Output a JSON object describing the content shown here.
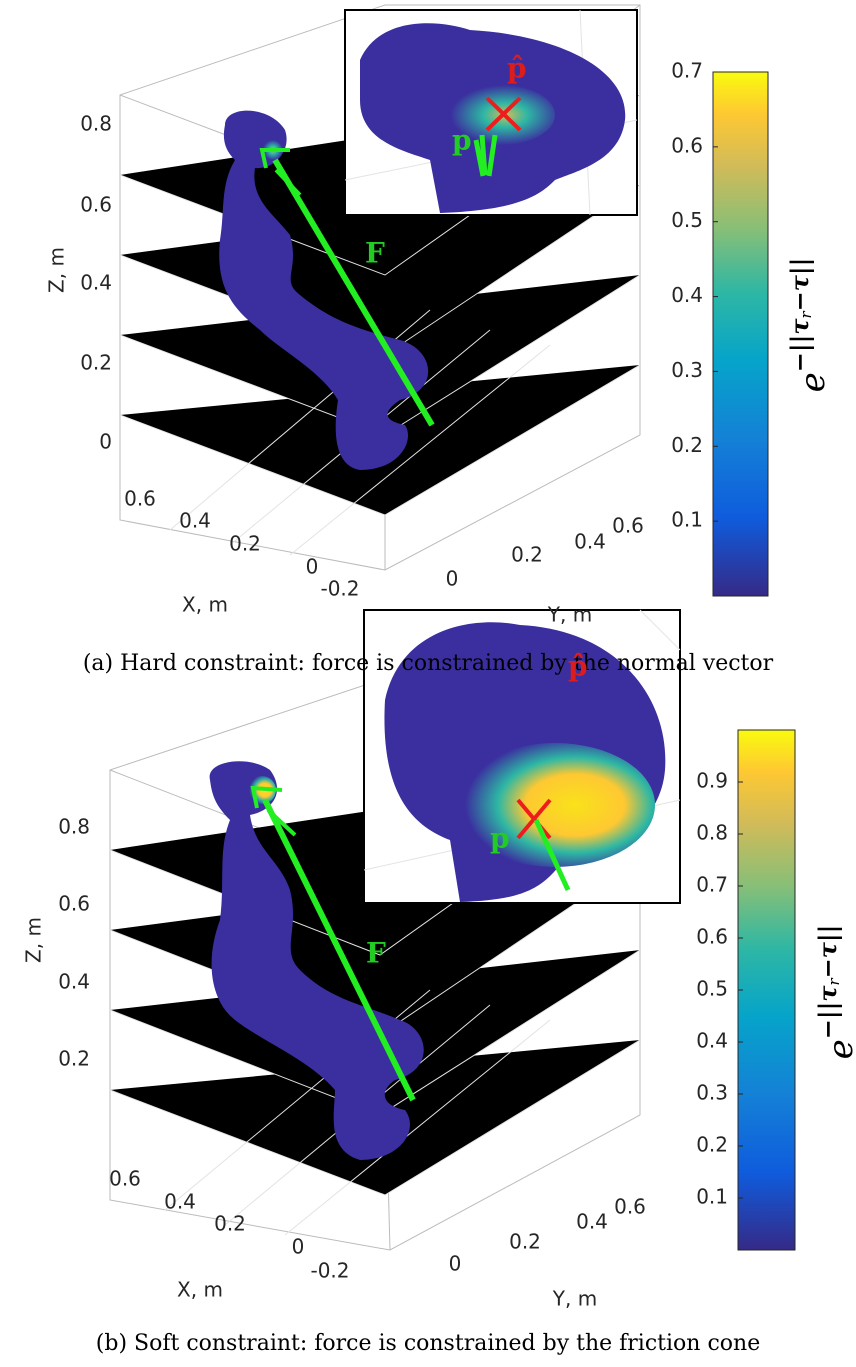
{
  "panels": [
    {
      "z_label": "Z, m",
      "z_ticks": [
        0,
        0.2,
        0.4,
        0.6,
        0.8
      ],
      "x_label": "X, m",
      "x_ticks": [
        0.6,
        0.4,
        0.2,
        0,
        -0.2
      ],
      "y_label": "Y, m",
      "y_ticks": [
        0,
        0.2,
        0.4,
        0.6
      ],
      "colorbar": {
        "lim": [
          0,
          0.7
        ],
        "ticks": [
          0.1,
          0.2,
          0.3,
          0.4,
          0.5,
          0.6,
          0.7
        ],
        "label": {
          "base": "e",
          "exp": "−||τ",
          "sub": "r",
          "rest": "−τ||"
        }
      },
      "annotations": {
        "force": "F",
        "point": "p",
        "estimate": "p̂"
      },
      "caption": "(a) Hard constraint: force is constrained by the normal vector"
    },
    {
      "z_label": "Z, m",
      "z_ticks": [
        0.2,
        0.4,
        0.6,
        0.8
      ],
      "x_label": "X, m",
      "x_ticks": [
        0.6,
        0.4,
        0.2,
        0,
        -0.2
      ],
      "y_label": "Y, m",
      "y_ticks": [
        0,
        0.2,
        0.4,
        0.6
      ],
      "colorbar": {
        "lim": [
          0,
          1
        ],
        "ticks": [
          0.1,
          0.2,
          0.3,
          0.4,
          0.5,
          0.6,
          0.7,
          0.8,
          0.9
        ],
        "label": {
          "base": "e",
          "exp": "−||τ",
          "sub": "r",
          "rest": "−τ||"
        }
      },
      "annotations": {
        "force": "F",
        "point": "p",
        "estimate": "p̂"
      },
      "caption": "(b) Soft constraint: force is constrained by the friction cone"
    }
  ]
}
